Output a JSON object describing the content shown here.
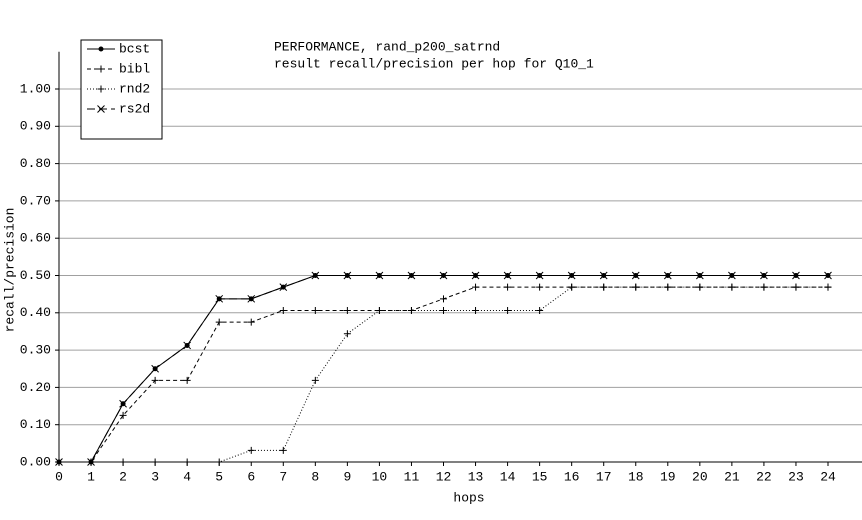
{
  "chart_data": {
    "type": "line",
    "title": "PERFORMANCE, rand_p200_satrnd",
    "subtitle": "result recall/precision per hop for Q10_1",
    "x_label": "hops",
    "y_label": "recall/precision",
    "x": [
      0,
      1,
      2,
      3,
      4,
      5,
      6,
      7,
      8,
      9,
      10,
      11,
      12,
      13,
      14,
      15,
      16,
      17,
      18,
      19,
      20,
      21,
      22,
      23,
      24
    ],
    "xlim": [
      0,
      25
    ],
    "xticks": [
      0,
      1,
      2,
      3,
      4,
      5,
      6,
      7,
      8,
      9,
      10,
      11,
      12,
      13,
      14,
      15,
      16,
      17,
      18,
      19,
      20,
      21,
      22,
      23,
      24
    ],
    "ylim": [
      0,
      1.1
    ],
    "yticks": [
      {
        "value": 0,
        "label": "0.00"
      },
      {
        "value": 0.1,
        "label": "0.10"
      },
      {
        "value": 0.2,
        "label": "0.20"
      },
      {
        "value": 0.3,
        "label": "0.30"
      },
      {
        "value": 0.4,
        "label": "0.40"
      },
      {
        "value": 0.5,
        "label": "0.50"
      },
      {
        "value": 0.6,
        "label": "0.60"
      },
      {
        "value": 0.7,
        "label": "0.70"
      },
      {
        "value": 0.8,
        "label": "0.80"
      },
      {
        "value": 0.9,
        "label": "0.90"
      },
      {
        "value": 1.0,
        "label": "1.00"
      }
    ],
    "grid": true,
    "legend": "top-left",
    "series": [
      {
        "name": "bcst",
        "color": "#000000",
        "dash": "none",
        "marker": "dot",
        "values": [
          0,
          0,
          0.15625,
          0.25,
          0.3125,
          0.4375,
          0.4375,
          0.46875,
          0.5,
          0.5,
          0.5,
          0.5,
          0.5,
          0.5,
          0.5,
          0.5,
          0.5,
          0.5,
          0.5,
          0.5,
          0.5,
          0.5,
          0.5,
          0.5,
          0.5
        ]
      },
      {
        "name": "bibl",
        "color": "#000000",
        "dash": "4,3",
        "marker": "plus",
        "values": [
          0,
          0,
          0.125,
          0.21875,
          0.21875,
          0.375,
          0.375,
          0.40625,
          0.40625,
          0.40625,
          0.40625,
          0.40625,
          0.4375,
          0.46875,
          0.46875,
          0.46875,
          0.46875,
          0.46875,
          0.46875,
          0.46875,
          0.46875,
          0.46875,
          0.46875,
          0.46875,
          0.46875
        ]
      },
      {
        "name": "rnd2",
        "color": "#000000",
        "dash": "1,2",
        "marker": "plus",
        "values": [
          0,
          0,
          0,
          0,
          0,
          0,
          0.03125,
          0.03125,
          0.21875,
          0.34375,
          0.40625,
          0.40625,
          0.40625,
          0.40625,
          0.40625,
          0.40625,
          0.46875,
          0.46875,
          0.46875,
          0.46875,
          0.46875,
          0.46875,
          0.46875,
          0.46875,
          0.46875
        ]
      },
      {
        "name": "rs2d",
        "color": "#000000",
        "dash": "8,4",
        "marker": "cross",
        "values": [
          0,
          0,
          0.15625,
          0.25,
          0.3125,
          0.4375,
          0.4375,
          0.46875,
          0.5,
          0.5,
          0.5,
          0.5,
          0.5,
          0.5,
          0.5,
          0.5,
          0.5,
          0.5,
          0.5,
          0.5,
          0.5,
          0.5,
          0.5,
          0.5,
          0.5
        ]
      }
    ]
  }
}
